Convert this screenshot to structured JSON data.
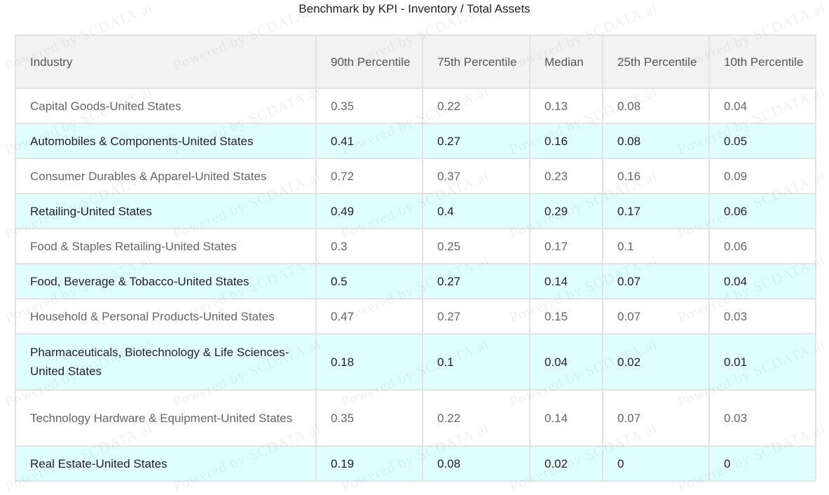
{
  "chart_data": {
    "type": "table",
    "title": "Benchmark by KPI - Inventory / Total Assets",
    "columns": [
      "Industry",
      "90th Percentile",
      "75th Percentile",
      "Median",
      "25th Percentile",
      "10th Percentile"
    ],
    "rows": [
      [
        "Capital Goods-United States",
        "0.35",
        "0.22",
        "0.13",
        "0.08",
        "0.04"
      ],
      [
        "Automobiles & Components-United States",
        "0.41",
        "0.27",
        "0.16",
        "0.08",
        "0.05"
      ],
      [
        "Consumer Durables & Apparel-United States",
        "0.72",
        "0.37",
        "0.23",
        "0.16",
        "0.09"
      ],
      [
        "Retailing-United States",
        "0.49",
        "0.4",
        "0.29",
        "0.17",
        "0.06"
      ],
      [
        "Food & Staples Retailing-United States",
        "0.3",
        "0.25",
        "0.17",
        "0.1",
        "0.06"
      ],
      [
        "Food, Beverage & Tobacco-United States",
        "0.5",
        "0.27",
        "0.14",
        "0.07",
        "0.04"
      ],
      [
        "Household & Personal Products-United States",
        "0.47",
        "0.27",
        "0.15",
        "0.07",
        "0.03"
      ],
      [
        "Pharmaceuticals, Biotechnology & Life Sciences-United States",
        "0.18",
        "0.1",
        "0.04",
        "0.02",
        "0.01"
      ],
      [
        "Technology Hardware & Equipment-United States",
        "0.35",
        "0.22",
        "0.14",
        "0.07",
        "0.03"
      ],
      [
        "Real Estate-United States",
        "0.19",
        "0.08",
        "0.02",
        "0",
        "0"
      ]
    ]
  },
  "watermark_text": "Powered by SCDATA.ai",
  "colors": {
    "header_bg": "#f2f2f2",
    "row_alt_bg": "#e0fefe",
    "row_bg": "#ffffff",
    "border": "#e3e3e3"
  }
}
